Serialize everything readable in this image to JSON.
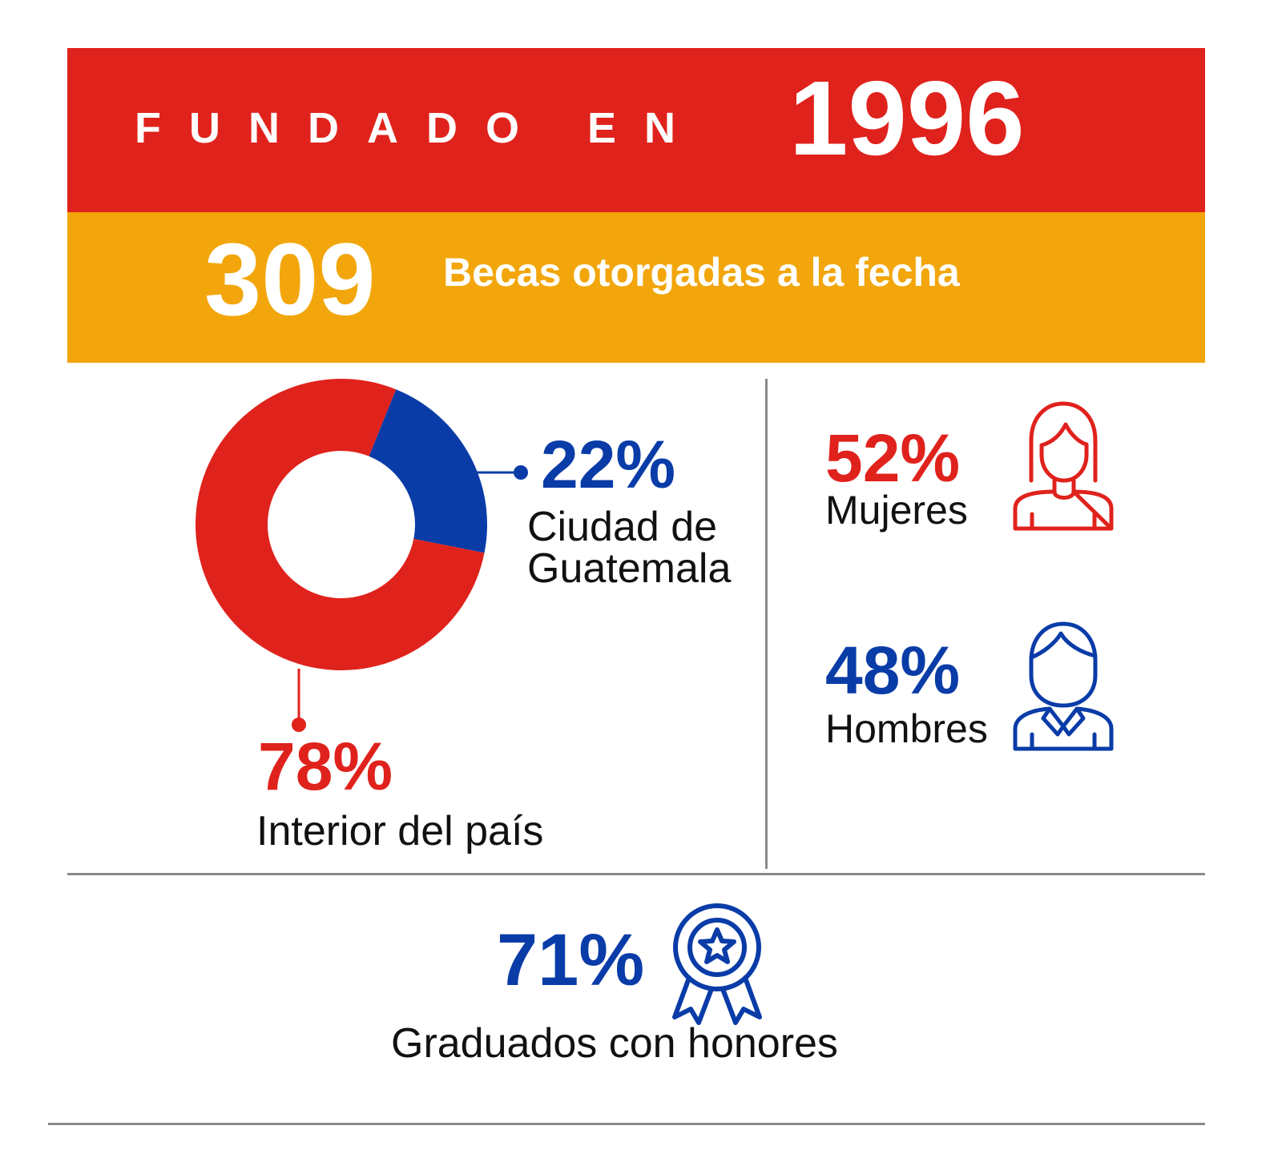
{
  "header": {
    "founded_label": "FUNDADO EN",
    "founded_year": "1996",
    "scholarships_count": "309",
    "scholarships_label": "Becas otorgadas a la fecha"
  },
  "location": {
    "city": {
      "percent": "22%",
      "label": "Ciudad de Guatemala"
    },
    "interior": {
      "percent": "78%",
      "label": "Interior del país"
    }
  },
  "gender": {
    "women": {
      "percent": "52%",
      "label": "Mujeres",
      "icon": "woman-icon"
    },
    "men": {
      "percent": "48%",
      "label": "Hombres",
      "icon": "man-icon"
    }
  },
  "honors": {
    "percent": "71%",
    "label": "Graduados con honores",
    "icon": "award-ribbon-icon"
  },
  "colors": {
    "red": "#e0221c",
    "yellow": "#f2a60b",
    "blue": "#0a3ca8",
    "divider": "#8a8a8a"
  },
  "chart_data": {
    "type": "pie",
    "categories": [
      "Ciudad de Guatemala",
      "Interior del país"
    ],
    "values": [
      22,
      78
    ],
    "colors": [
      "#0a3ca8",
      "#e0221c"
    ]
  }
}
